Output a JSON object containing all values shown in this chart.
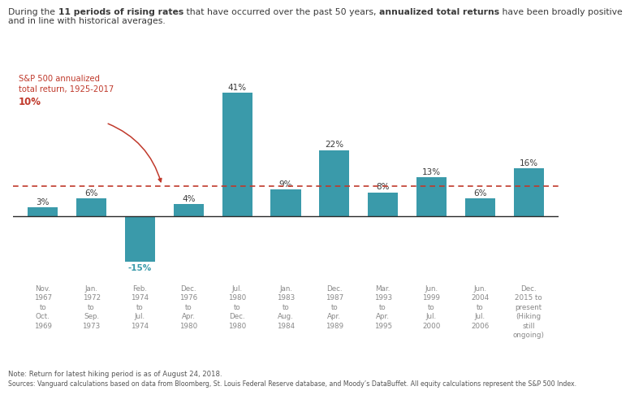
{
  "values": [
    3,
    6,
    -15,
    4,
    41,
    9,
    22,
    8,
    13,
    6,
    16
  ],
  "bar_color": "#3a9aaa",
  "bar_labels": [
    "3%",
    "6%",
    "-15%",
    "4%",
    "41%",
    "9%",
    "22%",
    "8%",
    "13%",
    "6%",
    "16%"
  ],
  "x_labels": [
    "Nov.\n1967\nto\nOct.\n1969",
    "Jan.\n1972\nto\nSep.\n1973",
    "Feb.\n1974\nto\nJul.\n1974",
    "Dec.\n1976\nto\nApr.\n1980",
    "Jul.\n1980\nto\nDec.\n1980",
    "Jan.\n1983\nto\nAug.\n1984",
    "Dec.\n1987\nto\nApr.\n1989",
    "Mar.\n1993\nto\nApr.\n1995",
    "Jun.\n1999\nto\nJul.\n2000",
    "Jun.\n2004\nto\nJul.\n2006",
    "Dec.\n2015 to\npresent\n(Hiking\nstill\nongoing)"
  ],
  "reference_line_y": 10,
  "reference_line_color": "#c0392b",
  "bar_label_color": "#3a3a3a",
  "neg_label_color": "#3a9aaa",
  "note_text": "Note: Return for latest hiking period is as of August 24, 2018.",
  "source_text": "Sources: Vanguard calculations based on data from Bloomberg, St. Louis Federal Reserve database, and Moody’s DataBuffet. All equity calculations represent the S&P 500 Index.",
  "background_color": "#ffffff",
  "text_color_dark": "#3a3a3a",
  "text_color_gray": "#888888",
  "ylim": [
    -22,
    48
  ]
}
